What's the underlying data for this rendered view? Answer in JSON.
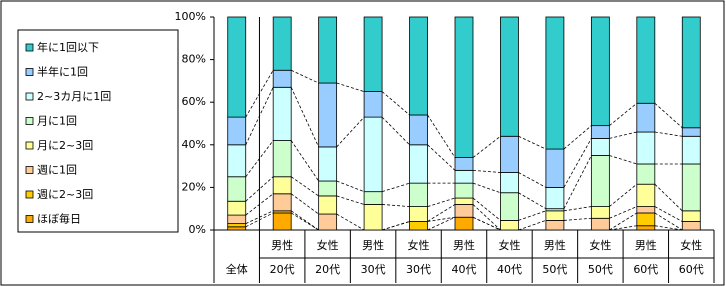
{
  "chart_data": {
    "type": "stacked_bar",
    "categories": [
      [
        "全体"
      ],
      [
        "男性",
        "20代"
      ],
      [
        "女性",
        "20代"
      ],
      [
        "男性",
        "30代"
      ],
      [
        "女性",
        "30代"
      ],
      [
        "男性",
        "40代"
      ],
      [
        "女性",
        "40代"
      ],
      [
        "男性",
        "50代"
      ],
      [
        "女性",
        "50代"
      ],
      [
        "男性",
        "60代"
      ],
      [
        "女性",
        "60代"
      ]
    ],
    "series": [
      {
        "name": "ほぼ毎日",
        "color": "#ffaa00",
        "values": [
          1.5,
          8,
          0,
          0,
          0,
          6,
          0,
          0,
          0,
          2,
          0
        ]
      },
      {
        "name": "週に2~3回",
        "color": "#ffcc00",
        "values": [
          1.5,
          1,
          0,
          0,
          4,
          0,
          0,
          0,
          0,
          6,
          0
        ]
      },
      {
        "name": "週に1回",
        "color": "#ffcc99",
        "values": [
          4,
          8,
          7.5,
          0,
          0,
          6,
          0,
          4.5,
          5.5,
          3,
          4
        ]
      },
      {
        "name": "月に2~3回",
        "color": "#ffff99",
        "values": [
          6.5,
          8,
          8.5,
          12,
          7,
          3,
          4.5,
          4.5,
          5.5,
          10.5,
          5
        ]
      },
      {
        "name": "月に1回",
        "color": "#ccffcc",
        "values": [
          11.5,
          17,
          7,
          6,
          11,
          7,
          13,
          1,
          24,
          9.5,
          22
        ]
      },
      {
        "name": "2~3カ月に1回",
        "color": "#ccffff",
        "values": [
          15,
          25,
          16,
          35,
          18,
          6,
          9.5,
          10,
          8,
          15,
          13
        ]
      },
      {
        "name": "半年に1回",
        "color": "#99ccff",
        "values": [
          13,
          8,
          30,
          12,
          14,
          6,
          17,
          18,
          6,
          13.5,
          4
        ]
      },
      {
        "name": "年に1回以下",
        "color": "#33cccc",
        "values": [
          47,
          25,
          31,
          35,
          46,
          66,
          56,
          62,
          51,
          40.5,
          52
        ]
      }
    ],
    "ylim": [
      0,
      100
    ],
    "yticks": [
      {
        "value": 0,
        "label": "0%"
      },
      {
        "value": 20,
        "label": "20%"
      },
      {
        "value": 40,
        "label": "40%"
      },
      {
        "value": 60,
        "label": "60%"
      },
      {
        "value": 80,
        "label": "80%"
      },
      {
        "value": 100,
        "label": "100%"
      }
    ],
    "legend": "left",
    "series_lines": true
  }
}
